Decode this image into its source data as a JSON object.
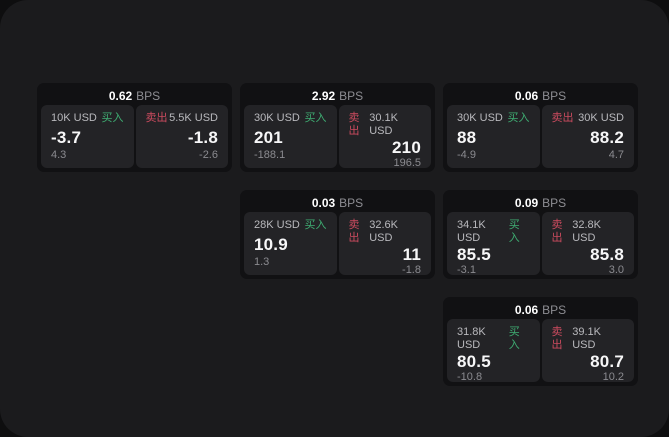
{
  "colors": {
    "page_bg": "#0e0e0f",
    "panel_bg": "#1b1b1d",
    "card_bg": "#111113",
    "subcard_bg": "#232326",
    "buy_green": "#3fae73",
    "sell_red": "#cc4b5f",
    "price_white": "#f7f7f8",
    "muted_gray": "#8b8b90"
  },
  "labels": {
    "bps_unit": "BPS",
    "buy": "买入",
    "sell": "卖出"
  },
  "cards": [
    {
      "bps": "0.62",
      "buy": {
        "size": "10K USD",
        "price": "-3.7",
        "delta": "4.3"
      },
      "sell": {
        "size": "5.5K USD",
        "price": "-1.8",
        "delta": "-2.6"
      }
    },
    {
      "bps": "2.92",
      "buy": {
        "size": "30K USD",
        "price": "201",
        "delta": "-188.1"
      },
      "sell": {
        "size": "30.1K USD",
        "price": "210",
        "delta": "196.5"
      }
    },
    {
      "bps": "0.06",
      "buy": {
        "size": "30K USD",
        "price": "88",
        "delta": "-4.9"
      },
      "sell": {
        "size": "30K USD",
        "price": "88.2",
        "delta": "4.7"
      }
    },
    {
      "bps": "0.03",
      "buy": {
        "size": "28K USD",
        "price": "10.9",
        "delta": "1.3"
      },
      "sell": {
        "size": "32.6K USD",
        "price": "11",
        "delta": "-1.8"
      }
    },
    {
      "bps": "0.09",
      "buy": {
        "size": "34.1K USD",
        "price": "85.5",
        "delta": "-3.1"
      },
      "sell": {
        "size": "32.8K USD",
        "price": "85.8",
        "delta": "3.0"
      }
    },
    {
      "bps": "0.06",
      "buy": {
        "size": "31.8K USD",
        "price": "80.5",
        "delta": "-10.8"
      },
      "sell": {
        "size": "39.1K USD",
        "price": "80.7",
        "delta": "10.2"
      }
    }
  ]
}
